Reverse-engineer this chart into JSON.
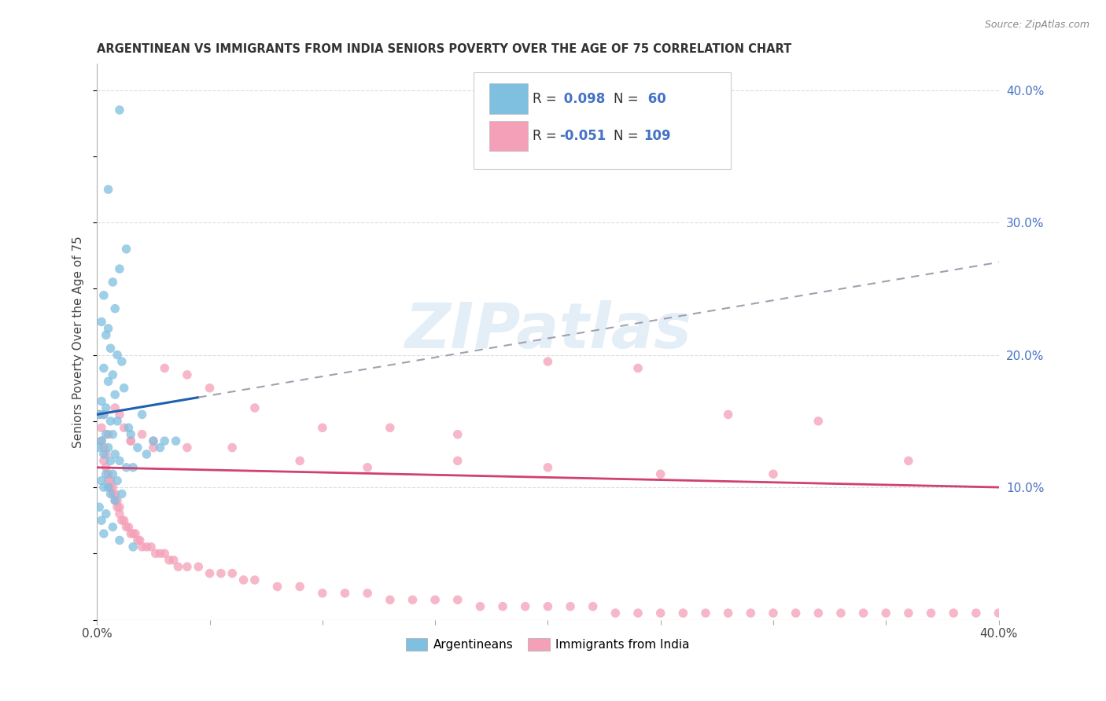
{
  "title": "ARGENTINEAN VS IMMIGRANTS FROM INDIA SENIORS POVERTY OVER THE AGE OF 75 CORRELATION CHART",
  "source": "Source: ZipAtlas.com",
  "ylabel": "Seniors Poverty Over the Age of 75",
  "xlim": [
    0.0,
    0.4
  ],
  "ylim": [
    0.0,
    0.42
  ],
  "R_arg": 0.098,
  "N_arg": 60,
  "R_ind": -0.051,
  "N_ind": 109,
  "color_arg": "#7fbfdf",
  "color_ind": "#f4a0b8",
  "color_arg_line": "#2060b0",
  "color_ind_line": "#d04070",
  "color_dashed": "#a0a0b0",
  "background_color": "#ffffff",
  "watermark": "ZIPatlas",
  "arg_line_solid_end": 0.045,
  "arg_line_x0": 0.0,
  "arg_line_y0": 0.155,
  "arg_line_x1": 0.4,
  "arg_line_y1": 0.27,
  "ind_line_x0": 0.0,
  "ind_line_y0": 0.115,
  "ind_line_x1": 0.4,
  "ind_line_y1": 0.1,
  "argentinean_x": [
    0.01,
    0.005,
    0.013,
    0.01,
    0.007,
    0.003,
    0.008,
    0.002,
    0.005,
    0.004,
    0.006,
    0.009,
    0.011,
    0.003,
    0.007,
    0.005,
    0.012,
    0.008,
    0.002,
    0.004,
    0.001,
    0.003,
    0.006,
    0.009,
    0.014,
    0.004,
    0.007,
    0.002,
    0.005,
    0.001,
    0.003,
    0.008,
    0.006,
    0.01,
    0.013,
    0.016,
    0.004,
    0.007,
    0.002,
    0.009,
    0.005,
    0.003,
    0.011,
    0.006,
    0.008,
    0.001,
    0.004,
    0.002,
    0.007,
    0.003,
    0.02,
    0.015,
    0.025,
    0.018,
    0.022,
    0.03,
    0.035,
    0.028,
    0.01,
    0.016
  ],
  "argentinean_y": [
    0.385,
    0.325,
    0.28,
    0.265,
    0.255,
    0.245,
    0.235,
    0.225,
    0.22,
    0.215,
    0.205,
    0.2,
    0.195,
    0.19,
    0.185,
    0.18,
    0.175,
    0.17,
    0.165,
    0.16,
    0.155,
    0.155,
    0.15,
    0.15,
    0.145,
    0.14,
    0.14,
    0.135,
    0.13,
    0.13,
    0.125,
    0.125,
    0.12,
    0.12,
    0.115,
    0.115,
    0.11,
    0.11,
    0.105,
    0.105,
    0.1,
    0.1,
    0.095,
    0.095,
    0.09,
    0.085,
    0.08,
    0.075,
    0.07,
    0.065,
    0.155,
    0.14,
    0.135,
    0.13,
    0.125,
    0.135,
    0.135,
    0.13,
    0.06,
    0.055
  ],
  "india_x": [
    0.001,
    0.002,
    0.002,
    0.003,
    0.003,
    0.004,
    0.004,
    0.005,
    0.005,
    0.006,
    0.006,
    0.007,
    0.007,
    0.008,
    0.008,
    0.009,
    0.009,
    0.01,
    0.01,
    0.011,
    0.012,
    0.013,
    0.014,
    0.015,
    0.016,
    0.017,
    0.018,
    0.019,
    0.02,
    0.022,
    0.024,
    0.026,
    0.028,
    0.03,
    0.032,
    0.034,
    0.036,
    0.04,
    0.045,
    0.05,
    0.055,
    0.06,
    0.065,
    0.07,
    0.08,
    0.09,
    0.1,
    0.11,
    0.12,
    0.13,
    0.14,
    0.15,
    0.16,
    0.17,
    0.18,
    0.19,
    0.2,
    0.21,
    0.22,
    0.23,
    0.24,
    0.25,
    0.26,
    0.27,
    0.28,
    0.29,
    0.3,
    0.31,
    0.32,
    0.33,
    0.34,
    0.35,
    0.36,
    0.37,
    0.38,
    0.39,
    0.4,
    0.003,
    0.005,
    0.008,
    0.01,
    0.012,
    0.015,
    0.02,
    0.025,
    0.03,
    0.04,
    0.05,
    0.07,
    0.1,
    0.13,
    0.16,
    0.2,
    0.24,
    0.28,
    0.32,
    0.36,
    0.015,
    0.025,
    0.04,
    0.06,
    0.09,
    0.12,
    0.16,
    0.2,
    0.25,
    0.3
  ],
  "india_y": [
    0.155,
    0.145,
    0.135,
    0.13,
    0.12,
    0.125,
    0.115,
    0.11,
    0.105,
    0.105,
    0.1,
    0.1,
    0.095,
    0.095,
    0.09,
    0.09,
    0.085,
    0.085,
    0.08,
    0.075,
    0.075,
    0.07,
    0.07,
    0.065,
    0.065,
    0.065,
    0.06,
    0.06,
    0.055,
    0.055,
    0.055,
    0.05,
    0.05,
    0.05,
    0.045,
    0.045,
    0.04,
    0.04,
    0.04,
    0.035,
    0.035,
    0.035,
    0.03,
    0.03,
    0.025,
    0.025,
    0.02,
    0.02,
    0.02,
    0.015,
    0.015,
    0.015,
    0.015,
    0.01,
    0.01,
    0.01,
    0.01,
    0.01,
    0.01,
    0.005,
    0.005,
    0.005,
    0.005,
    0.005,
    0.005,
    0.005,
    0.005,
    0.005,
    0.005,
    0.005,
    0.005,
    0.005,
    0.005,
    0.005,
    0.005,
    0.005,
    0.005,
    0.155,
    0.14,
    0.16,
    0.155,
    0.145,
    0.135,
    0.14,
    0.13,
    0.19,
    0.185,
    0.175,
    0.16,
    0.145,
    0.145,
    0.14,
    0.195,
    0.19,
    0.155,
    0.15,
    0.12,
    0.135,
    0.135,
    0.13,
    0.13,
    0.12,
    0.115,
    0.12,
    0.115,
    0.11,
    0.11
  ]
}
